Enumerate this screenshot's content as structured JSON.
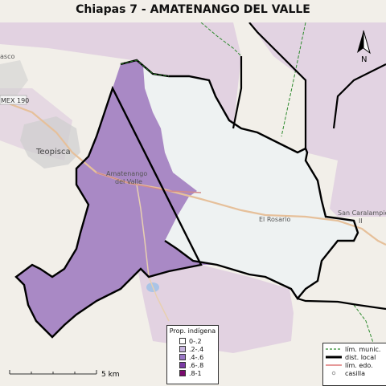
{
  "title": "Chiapas 7 - AMATENANGO DEL VALLE",
  "places": {
    "teopisca": "Teopisca",
    "amatenango_1": "Amatenango",
    "amatenango_2": "del Valle",
    "el_rosario": "El Rosario",
    "san_caralampio_1": "San Caralampio",
    "san_caralampio_2": "II",
    "asco": "asco",
    "road_shield": "MEX 190"
  },
  "north_arrow": {
    "label": "N"
  },
  "scale_bar": {
    "label": "5 km"
  },
  "prop_legend": {
    "title": "Prop. indígena",
    "items": [
      {
        "label": "0-.2",
        "color": "#ffffff"
      },
      {
        "label": ".2-.4",
        "color": "#c5b3dc"
      },
      {
        "label": ".4-.6",
        "color": "#9a78c6"
      },
      {
        "label": ".6-.8",
        "color": "#7a3aa4"
      },
      {
        "label": ".8-1",
        "color": "#7a0a6e"
      }
    ]
  },
  "line_legend": {
    "items": [
      {
        "label": "lím. munic.",
        "color": "#2e8b2e",
        "style": "dashed"
      },
      {
        "label": "dist. local",
        "color": "#000000",
        "style": "thick"
      },
      {
        "label": "lím. edo.",
        "color": "#cc3333",
        "style": "thin"
      },
      {
        "label": "casilla",
        "color": "#888888",
        "style": "dot"
      }
    ]
  },
  "colors": {
    "district_fill": "#a989c5",
    "east_fill": "#eef2f2",
    "pink_fill": "#dcc8de",
    "base_land": "#f2efe9",
    "lake": "#aac4e6"
  }
}
